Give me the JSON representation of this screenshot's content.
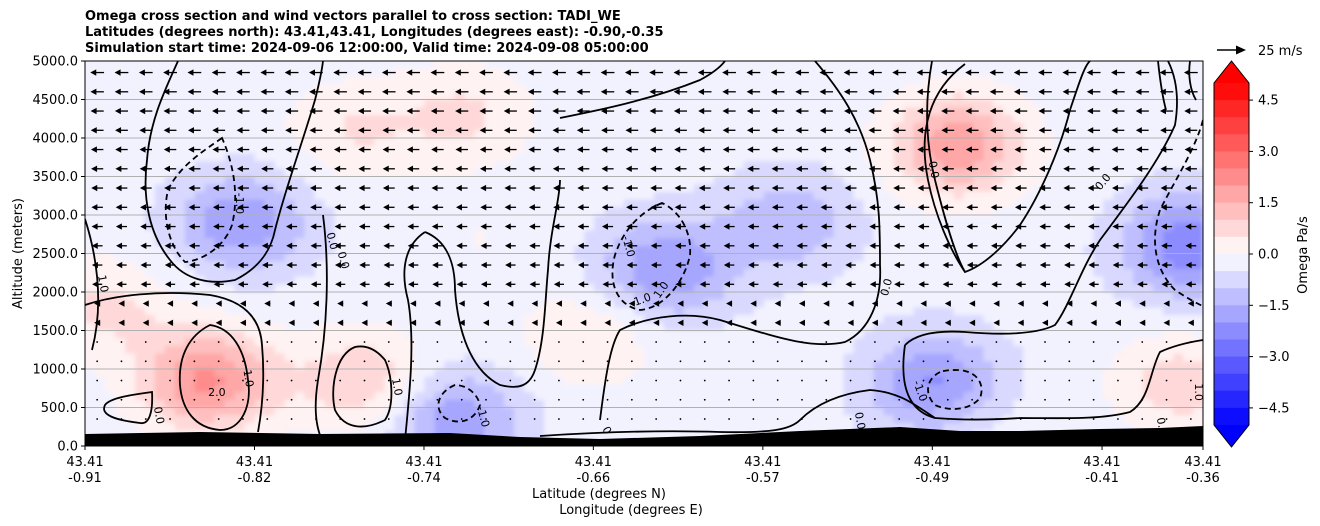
{
  "chart_data": {
    "type": "heatmap",
    "title_lines": [
      "Omega cross section and wind vectors parallel to cross section: TADI_WE",
      "Latitudes (degrees north): 43.41,43.41, Longitudes (degrees east): -0.90,-0.35",
      "Simulation start time: 2024-09-06 12:00:00, Valid time: 2024-09-08 05:00:00"
    ],
    "ylabel": "Altitude (meters)",
    "xlabel_lines": [
      "Latitude (degrees N)",
      "Longitude (degrees E)"
    ],
    "ylim": [
      0,
      5000
    ],
    "y_ticks": [
      {
        "value": 0,
        "label": "0.0"
      },
      {
        "value": 500,
        "label": "500.0"
      },
      {
        "value": 1000,
        "label": "1000.0"
      },
      {
        "value": 1500,
        "label": "1500.0"
      },
      {
        "value": 2000,
        "label": "2000.0"
      },
      {
        "value": 2500,
        "label": "2500.0"
      },
      {
        "value": 3000,
        "label": "3000.0"
      },
      {
        "value": 3500,
        "label": "3500.0"
      },
      {
        "value": 4000,
        "label": "4000.0"
      },
      {
        "value": 4500,
        "label": "4500.0"
      },
      {
        "value": 5000,
        "label": "5000.0"
      }
    ],
    "x_ticks": [
      {
        "lat": "43.41",
        "lon": "-0.91"
      },
      {
        "lat": "43.41",
        "lon": "-0.82"
      },
      {
        "lat": "43.41",
        "lon": "-0.74"
      },
      {
        "lat": "43.41",
        "lon": "-0.66"
      },
      {
        "lat": "43.41",
        "lon": "-0.57"
      },
      {
        "lat": "43.41",
        "lon": "-0.49"
      },
      {
        "lat": "43.41",
        "lon": "-0.41"
      },
      {
        "lat": "43.41",
        "lon": "-0.36"
      }
    ],
    "colorbar": {
      "label": "Omega Pa/s",
      "range": [
        -5,
        5
      ],
      "step": 0.5,
      "extend": "both",
      "ticks": [
        {
          "value": 4.5,
          "label": "4.5"
        },
        {
          "value": 3.0,
          "label": "3.0"
        },
        {
          "value": 1.5,
          "label": "1.5"
        },
        {
          "value": 0.0,
          "label": "0.0"
        },
        {
          "value": -1.5,
          "label": "−1.5"
        },
        {
          "value": -3.0,
          "label": "−3.0"
        },
        {
          "value": -4.5,
          "label": "−4.5"
        }
      ]
    },
    "vector_key": {
      "label": "25 m/s"
    },
    "omega_field": {
      "description": "approximate omega centres (Pa/s); x index 0..1 across the cross-section, altitude in meters",
      "features": [
        {
          "x": 0.14,
          "alt": 2900,
          "omega": -1.6
        },
        {
          "x": 0.11,
          "alt": 850,
          "omega": 2.4
        },
        {
          "x": 0.24,
          "alt": 4100,
          "omega": 0.8
        },
        {
          "x": 0.25,
          "alt": 850,
          "omega": 1.3
        },
        {
          "x": 0.34,
          "alt": 4300,
          "omega": 0.9
        },
        {
          "x": 0.35,
          "alt": 2700,
          "omega": 0.3
        },
        {
          "x": 0.33,
          "alt": 350,
          "omega": -1.6
        },
        {
          "x": 0.45,
          "alt": 1400,
          "omega": 0.8
        },
        {
          "x": 0.52,
          "alt": 2300,
          "omega": -1.7
        },
        {
          "x": 0.63,
          "alt": 2900,
          "omega": -1.1
        },
        {
          "x": 0.78,
          "alt": 3900,
          "omega": 2.2
        },
        {
          "x": 0.76,
          "alt": 800,
          "omega": -1.8
        },
        {
          "x": 0.99,
          "alt": 2600,
          "omega": -2.2
        },
        {
          "x": 0.98,
          "alt": 800,
          "omega": 1.1
        },
        {
          "x": 0.02,
          "alt": 1800,
          "omega": 0.9
        },
        {
          "x": 0.07,
          "alt": 4400,
          "omega": 0.3
        },
        {
          "x": 0.6,
          "alt": 600,
          "omega": 0.3
        },
        {
          "x": 0.8,
          "alt": 250,
          "omega": 0.25
        }
      ]
    },
    "contour_labels": [
      {
        "text": "-1.0",
        "x": 0.135,
        "alt": 3150,
        "rot": 90
      },
      {
        "text": "1.0",
        "x": 0.013,
        "alt": 2100,
        "rot": 80
      },
      {
        "text": "2.0",
        "x": 0.118,
        "alt": 650,
        "rot": 0
      },
      {
        "text": "1.0",
        "x": 0.143,
        "alt": 870,
        "rot": 80
      },
      {
        "text": "0.0",
        "x": 0.063,
        "alt": 390,
        "rot": 80
      },
      {
        "text": "0.0",
        "x": 0.218,
        "alt": 2650,
        "rot": 75
      },
      {
        "text": "0.0",
        "x": 0.228,
        "alt": 2400,
        "rot": 75
      },
      {
        "text": "1.0",
        "x": 0.276,
        "alt": 760,
        "rot": 80
      },
      {
        "text": "-1.0",
        "x": 0.353,
        "alt": 370,
        "rot": 75
      },
      {
        "text": "0",
        "x": 0.464,
        "alt": 180,
        "rot": 60
      },
      {
        "text": "-1.0",
        "x": 0.483,
        "alt": 2580,
        "rot": 75
      },
      {
        "text": "-1.0",
        "x": 0.498,
        "alt": 1850,
        "rot": -20
      },
      {
        "text": "1.0",
        "x": 0.518,
        "alt": 2000,
        "rot": -55
      },
      {
        "text": "0.0",
        "x": 0.72,
        "alt": 2050,
        "rot": -75
      },
      {
        "text": "0.0",
        "x": 0.69,
        "alt": 320,
        "rot": 80
      },
      {
        "text": "0.0",
        "x": 0.756,
        "alt": 3580,
        "rot": 80
      },
      {
        "text": "0.0",
        "x": 0.913,
        "alt": 3400,
        "rot": -50
      },
      {
        "text": "-1.0",
        "x": 0.744,
        "alt": 700,
        "rot": 70
      },
      {
        "text": "0.0",
        "x": 0.96,
        "alt": 250,
        "rot": 80
      },
      {
        "text": "1.0",
        "x": 0.993,
        "alt": 700,
        "rot": 90
      }
    ]
  }
}
